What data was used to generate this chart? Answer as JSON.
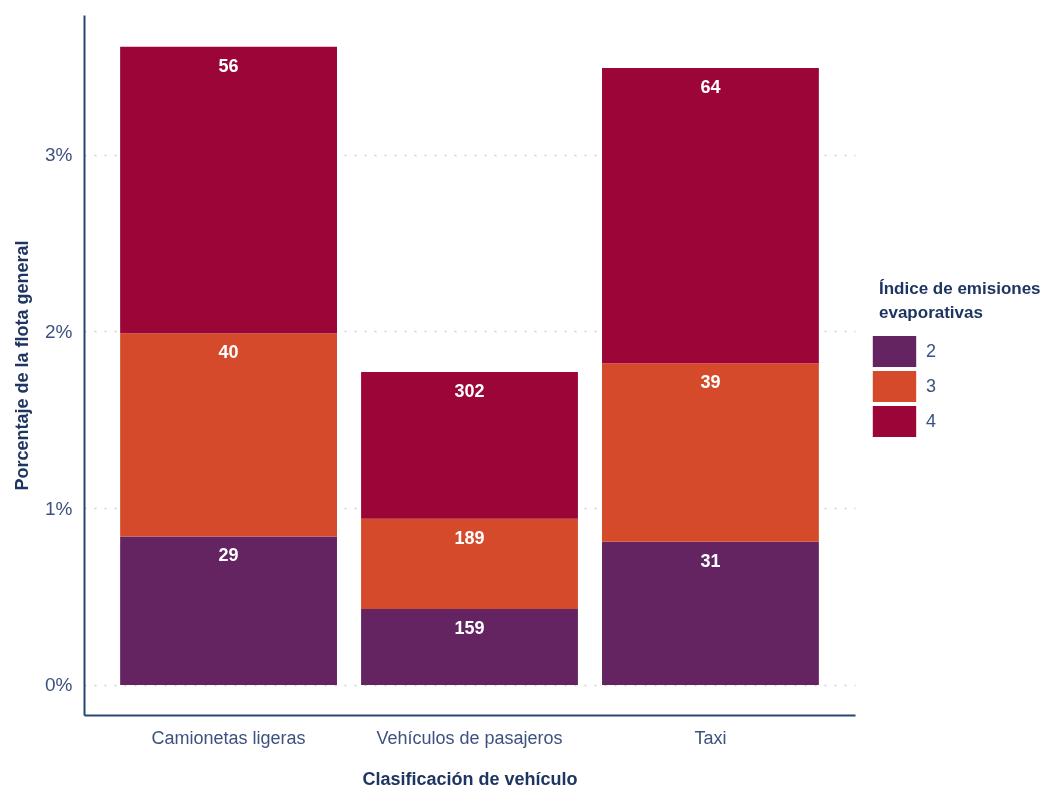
{
  "chart_data": {
    "type": "bar",
    "stacked": true,
    "categories": [
      "Camionetas ligeras",
      "Vehículos de pasajeros",
      "Taxi"
    ],
    "series": [
      {
        "name": "2",
        "color": "#642462",
        "values": [
          0.84,
          0.43,
          0.81
        ]
      },
      {
        "name": "3",
        "color": "#d54a2a",
        "values": [
          1.15,
          0.51,
          1.01
        ]
      },
      {
        "name": "4",
        "color": "#9c0538",
        "values": [
          1.62,
          0.83,
          1.67
        ]
      }
    ],
    "annotations": [
      {
        "text": "29",
        "x": "Camionetas ligeras",
        "y": 0.84
      },
      {
        "text": "40",
        "x": "Camionetas ligeras",
        "y": 1.99
      },
      {
        "text": "56",
        "x": "Camionetas ligeras",
        "y": 3.61
      },
      {
        "text": "159",
        "x": "Vehículos de pasajeros",
        "y": 0.43
      },
      {
        "text": "189",
        "x": "Vehículos de pasajeros",
        "y": 0.94
      },
      {
        "text": "302",
        "x": "Vehículos de pasajeros",
        "y": 1.77
      },
      {
        "text": "31",
        "x": "Taxi",
        "y": 0.81
      },
      {
        "text": "39",
        "x": "Taxi",
        "y": 1.82
      },
      {
        "text": "64",
        "x": "Taxi",
        "y": 3.49
      }
    ],
    "ylim": [
      -0.17,
      3.79
    ],
    "yticks": [
      {
        "value": 0,
        "label": "0%"
      },
      {
        "value": 1,
        "label": "1%"
      },
      {
        "value": 2,
        "label": "2%"
      },
      {
        "value": 3,
        "label": "3%"
      }
    ],
    "xlabel": "Clasificación de vehículo",
    "ylabel": "Porcentaje de la flota general",
    "legend_title": "Índice de emisiones evaporativas",
    "legend": "right",
    "grid": "y"
  }
}
